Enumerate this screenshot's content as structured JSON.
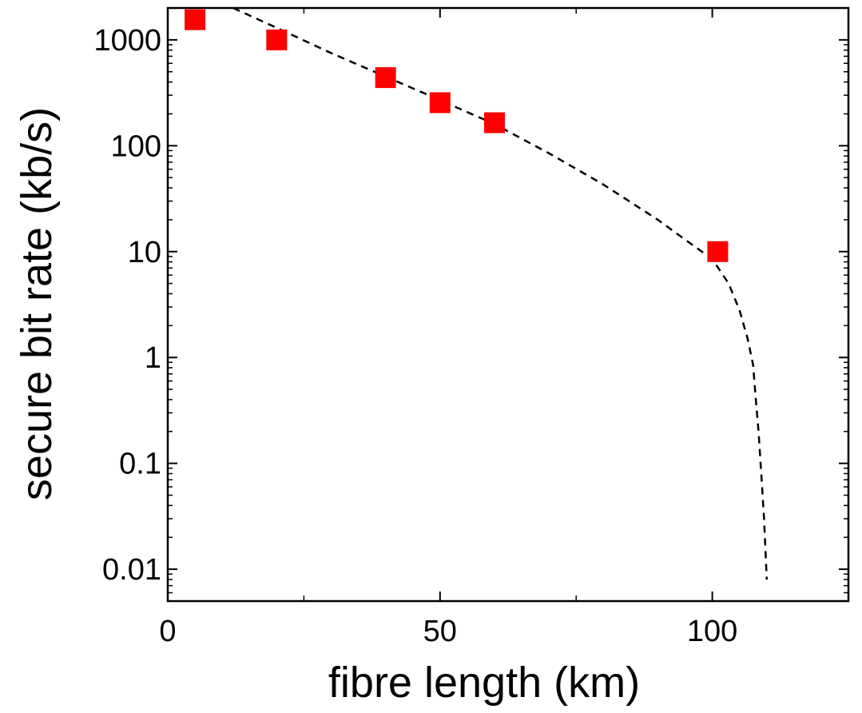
{
  "chart_data": {
    "type": "scatter",
    "xlabel": "fibre length (km)",
    "ylabel": "secure bit rate (kb/s)",
    "xlim": [
      0,
      125
    ],
    "ylim": [
      0.005,
      2000
    ],
    "y_scale": "log",
    "x_ticks": [
      {
        "value": 0,
        "label": "0"
      },
      {
        "value": 50,
        "label": "50"
      },
      {
        "value": 100,
        "label": "100"
      }
    ],
    "x_minor_ticks": [
      25,
      75,
      125
    ],
    "y_ticks": [
      {
        "value": 0.01,
        "label": "0.01"
      },
      {
        "value": 0.1,
        "label": "0.1"
      },
      {
        "value": 1,
        "label": "1"
      },
      {
        "value": 10,
        "label": "10"
      },
      {
        "value": 100,
        "label": "100"
      },
      {
        "value": 1000,
        "label": "1000"
      }
    ],
    "grid": false,
    "series": [
      {
        "kind": "markers",
        "marker": "square",
        "color": "#ff0000",
        "x": [
          5,
          20,
          40,
          50,
          60,
          101
        ],
        "y": [
          1550,
          1000,
          440,
          255,
          165,
          10
        ]
      },
      {
        "kind": "dashed-line",
        "color": "#000000",
        "x": [
          12,
          20,
          30,
          40,
          50,
          60,
          70,
          80,
          90,
          95,
          100,
          103,
          105,
          106.5,
          107.5,
          108,
          108.5,
          109,
          109.5,
          110
        ],
        "y": [
          2000,
          1300,
          750,
          450,
          270,
          160,
          85,
          43,
          20,
          13,
          8.5,
          5,
          2.8,
          1.5,
          0.85,
          0.4,
          0.2,
          0.08,
          0.03,
          0.008
        ]
      }
    ]
  }
}
